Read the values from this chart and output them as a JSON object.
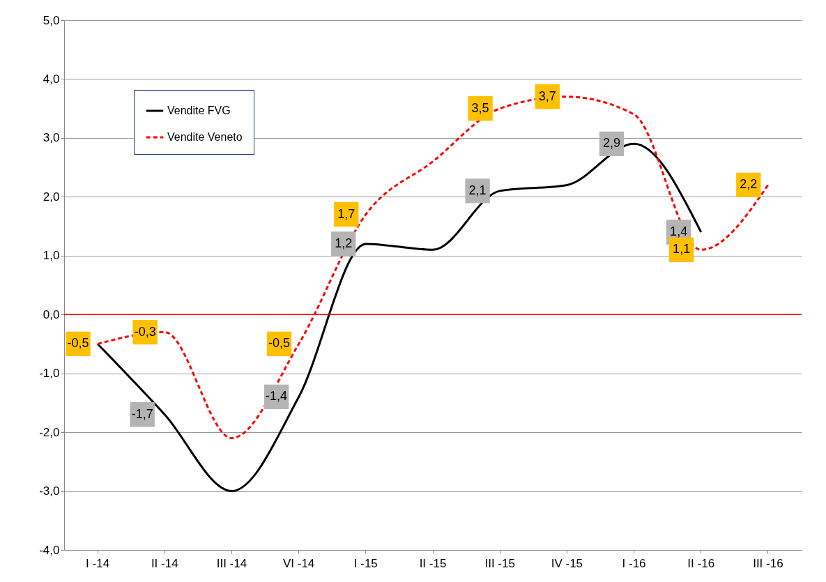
{
  "chart_data": {
    "type": "line",
    "categories": [
      "I -14",
      "II -14",
      "III -14",
      "VI -14",
      "I -15",
      "II -15",
      "III -15",
      "IV -15",
      "I -16",
      "II -16",
      "III -16"
    ],
    "series": [
      {
        "name": "Vendite FVG",
        "color": "#000000",
        "line_style": "solid",
        "values": [
          -0.5,
          -1.7,
          -3.0,
          -1.4,
          1.2,
          1.1,
          2.1,
          2.2,
          2.9,
          1.4,
          null
        ],
        "value_labels": [
          null,
          "-1,7",
          null,
          "-1,4",
          "1,2",
          null,
          "2,1",
          null,
          "2,9",
          "1,4",
          null
        ]
      },
      {
        "name": "Vendite Veneto",
        "color": "#ff0000",
        "line_style": "dashed",
        "values": [
          -0.5,
          -0.3,
          -2.1,
          -0.5,
          1.7,
          2.6,
          3.5,
          3.7,
          3.4,
          1.1,
          2.2
        ],
        "value_labels": [
          "-0,5",
          "-0,3",
          null,
          "-0,5",
          "1,7",
          null,
          "3,5",
          "3,7",
          null,
          "1,1",
          "2,2"
        ]
      }
    ],
    "ylim": [
      -4,
      5
    ],
    "yticks": [
      {
        "value": -4,
        "label": "-4,0"
      },
      {
        "value": -3,
        "label": "-3,0"
      },
      {
        "value": -2,
        "label": "-2,0"
      },
      {
        "value": -1,
        "label": "-1,0"
      },
      {
        "value": 0,
        "label": "0,0"
      },
      {
        "value": 1,
        "label": "1,0"
      },
      {
        "value": 2,
        "label": "2,0"
      },
      {
        "value": 3,
        "label": "3,0"
      },
      {
        "value": 4,
        "label": "4,0"
      },
      {
        "value": 5,
        "label": "5,0"
      }
    ],
    "grid": "y",
    "legend": "top left",
    "ref_lines": [
      {
        "axis": "y",
        "value": 0,
        "color": "#ff0000"
      }
    ]
  }
}
